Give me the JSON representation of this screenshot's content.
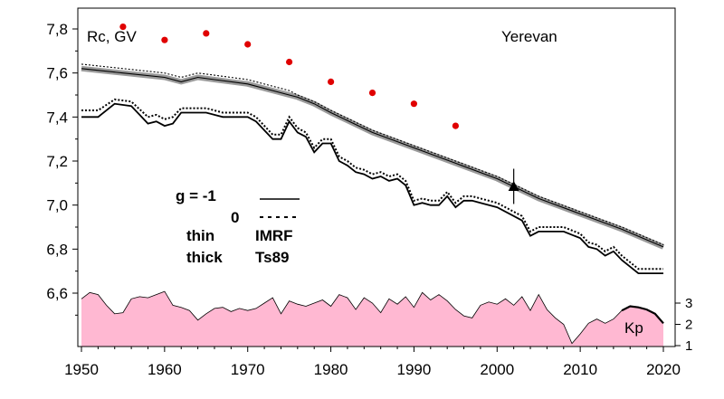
{
  "chart_data": {
    "type": "line",
    "title": "",
    "ylabel": "Rc, GV",
    "location": "Yerevan",
    "xlim": [
      1950,
      2020
    ],
    "ylim": [
      6.4,
      7.85
    ],
    "x_ticks": [
      "1950",
      "1960",
      "1970",
      "1980",
      "1990",
      "2000",
      "2010",
      "2020"
    ],
    "y_ticks": [
      "6,6",
      "6,8",
      "7,0",
      "7,2",
      "7,4",
      "7,6",
      "7,8"
    ],
    "legend": {
      "g_minus1": "g  = -1",
      "g_zero": "0",
      "thin": "thin",
      "imrf": "IMRF",
      "thick": "thick",
      "ts89": "Ts89"
    },
    "measured_points": {
      "x": [
        1955,
        1960,
        1965,
        1970,
        1975,
        1980,
        1985,
        1990,
        1995
      ],
      "y": [
        7.81,
        7.75,
        7.78,
        7.73,
        7.65,
        7.56,
        7.51,
        7.46,
        7.36
      ]
    },
    "observation": {
      "x": 2002,
      "y": 7.085,
      "err": 0.08
    },
    "series": [
      {
        "style": "thin-solid",
        "x": [
          1950,
          1955,
          1960,
          1962,
          1964,
          1966,
          1970,
          1975,
          1976,
          1978,
          1980,
          1985,
          1990,
          1995,
          2000,
          2005,
          2010,
          2015,
          2020
        ],
        "y": [
          7.62,
          7.6,
          7.58,
          7.56,
          7.58,
          7.57,
          7.55,
          7.5,
          7.49,
          7.46,
          7.42,
          7.33,
          7.26,
          7.19,
          7.12,
          7.03,
          6.96,
          6.89,
          6.81
        ]
      },
      {
        "style": "thin-dotted",
        "x": [
          1950,
          1955,
          1960,
          1962,
          1964,
          1966,
          1970,
          1975,
          1976,
          1978,
          1980,
          1985,
          1990,
          1995,
          2000,
          2005,
          2010,
          2015,
          2020
        ],
        "y": [
          7.64,
          7.62,
          7.6,
          7.58,
          7.6,
          7.59,
          7.57,
          7.52,
          7.5,
          7.47,
          7.43,
          7.34,
          7.27,
          7.2,
          7.13,
          7.04,
          6.97,
          6.9,
          6.82
        ]
      },
      {
        "style": "thick-solid",
        "x": [
          1950,
          1952,
          1954,
          1956,
          1958,
          1959,
          1960,
          1961,
          1962,
          1965,
          1967,
          1970,
          1971,
          1973,
          1974,
          1975,
          1976,
          1977,
          1978,
          1979,
          1980,
          1981,
          1982,
          1983,
          1984,
          1985,
          1986,
          1987,
          1988,
          1989,
          1990,
          1991,
          1992,
          1993,
          1994,
          1995,
          1996,
          1997,
          1998,
          2000,
          2002,
          2003,
          2004,
          2005,
          2006,
          2008,
          2010,
          2011,
          2012,
          2013,
          2014,
          2015,
          2016,
          2017,
          2018,
          2020
        ],
        "y": [
          7.4,
          7.4,
          7.46,
          7.45,
          7.37,
          7.38,
          7.36,
          7.37,
          7.42,
          7.42,
          7.4,
          7.4,
          7.38,
          7.3,
          7.3,
          7.38,
          7.33,
          7.31,
          7.24,
          7.28,
          7.28,
          7.2,
          7.18,
          7.15,
          7.14,
          7.12,
          7.13,
          7.11,
          7.12,
          7.09,
          7.0,
          7.01,
          7.0,
          7.0,
          7.04,
          6.99,
          7.02,
          7.02,
          7.01,
          6.99,
          6.95,
          6.93,
          6.86,
          6.88,
          6.88,
          6.88,
          6.85,
          6.81,
          6.8,
          6.77,
          6.79,
          6.75,
          6.72,
          6.69,
          6.69,
          6.69
        ]
      },
      {
        "style": "thick-dotted",
        "x": [
          1950,
          1952,
          1954,
          1956,
          1958,
          1959,
          1960,
          1961,
          1962,
          1965,
          1967,
          1970,
          1971,
          1973,
          1974,
          1975,
          1976,
          1977,
          1978,
          1979,
          1980,
          1981,
          1982,
          1983,
          1984,
          1985,
          1986,
          1987,
          1988,
          1989,
          1990,
          1991,
          1992,
          1993,
          1994,
          1995,
          1996,
          1997,
          1998,
          2000,
          2002,
          2003,
          2004,
          2005,
          2006,
          2008,
          2010,
          2011,
          2012,
          2013,
          2014,
          2015,
          2016,
          2017,
          2018,
          2020
        ],
        "y": [
          7.43,
          7.43,
          7.48,
          7.47,
          7.4,
          7.41,
          7.39,
          7.4,
          7.44,
          7.44,
          7.42,
          7.42,
          7.4,
          7.32,
          7.32,
          7.4,
          7.35,
          7.33,
          7.26,
          7.3,
          7.3,
          7.22,
          7.2,
          7.17,
          7.16,
          7.14,
          7.15,
          7.13,
          7.14,
          7.11,
          7.02,
          7.03,
          7.02,
          7.02,
          7.06,
          7.01,
          7.04,
          7.04,
          7.03,
          7.01,
          6.97,
          6.95,
          6.88,
          6.9,
          6.9,
          6.9,
          6.87,
          6.83,
          6.82,
          6.79,
          6.81,
          6.77,
          6.74,
          6.71,
          6.71,
          6.71
        ]
      }
    ],
    "kp": {
      "label": "Kp",
      "ticks": [
        "1",
        "2",
        "3"
      ],
      "ylim": [
        1,
        3.8
      ],
      "fill_color": "#ffb8d2",
      "x": [
        1950,
        1951,
        1952,
        1953,
        1954,
        1955,
        1956,
        1957,
        1958,
        1959,
        1960,
        1961,
        1962,
        1963,
        1964,
        1965,
        1966,
        1967,
        1968,
        1969,
        1970,
        1971,
        1972,
        1973,
        1974,
        1975,
        1976,
        1977,
        1978,
        1979,
        1980,
        1981,
        1982,
        1983,
        1984,
        1985,
        1986,
        1987,
        1988,
        1989,
        1990,
        1991,
        1992,
        1993,
        1994,
        1995,
        1996,
        1997,
        1998,
        1999,
        2000,
        2001,
        2002,
        2003,
        2004,
        2005,
        2006,
        2007,
        2008,
        2009,
        2010,
        2011,
        2012,
        2013,
        2014,
        2015,
        2016,
        2017,
        2018,
        2019,
        2020
      ],
      "y": [
        3.2,
        3.5,
        3.4,
        2.9,
        2.5,
        2.55,
        3.2,
        3.3,
        3.25,
        3.4,
        3.55,
        2.9,
        2.8,
        2.65,
        2.2,
        2.5,
        2.75,
        2.8,
        2.6,
        2.75,
        2.65,
        2.75,
        3.0,
        3.25,
        2.5,
        3.1,
        2.95,
        2.85,
        3.0,
        3.15,
        2.85,
        3.4,
        3.25,
        2.7,
        3.25,
        3.0,
        2.55,
        3.2,
        2.95,
        3.3,
        2.8,
        3.5,
        3.15,
        3.4,
        3.1,
        2.7,
        2.4,
        2.3,
        2.9,
        3.05,
        2.95,
        3.2,
        2.9,
        3.3,
        2.65,
        3.4,
        2.7,
        2.3,
        2.0,
        1.1,
        1.55,
        2.05,
        2.25,
        2.05,
        2.25,
        2.65,
        2.85,
        2.8,
        2.7,
        2.5,
        2.05
      ]
    },
    "grid": false
  }
}
